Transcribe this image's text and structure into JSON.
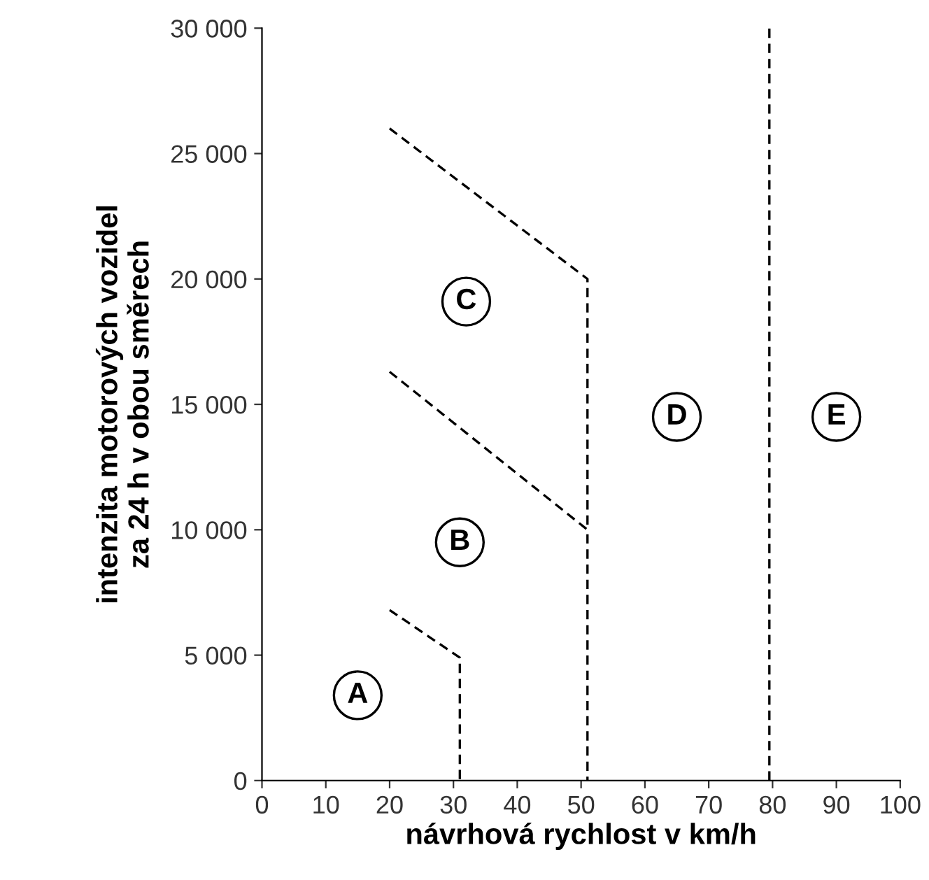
{
  "chart_data": {
    "type": "line",
    "xlabel": "návrhová rychlost v km/h",
    "ylabel": "intenzita motorových vozidel\nza 24 h v obou směrech",
    "series": [
      {
        "color": "#000000",
        "x": [
          20,
          31,
          31
        ],
        "values": [
          6800,
          4900,
          0
        ]
      },
      {
        "color": "#000000",
        "x": [
          20,
          51,
          51
        ],
        "values": [
          16300,
          10000,
          0
        ]
      },
      {
        "color": "#000000",
        "x": [
          20,
          51,
          51
        ],
        "values": [
          26000,
          20000,
          10000
        ]
      },
      {
        "color": "#000000",
        "x": [
          79.5,
          79.5
        ],
        "values": [
          0,
          30000
        ]
      }
    ],
    "line_style": "dashed",
    "marker": "none",
    "grid": false,
    "legend": false,
    "xlim": [
      0,
      100
    ],
    "xticks": [
      0,
      10,
      20,
      30,
      40,
      50,
      60,
      70,
      80,
      90,
      100
    ],
    "ylim": [
      0,
      30000
    ],
    "yticks": [
      {
        "value": 0,
        "label": "0"
      },
      {
        "value": 5000,
        "label": "5 000"
      },
      {
        "value": 10000,
        "label": "10 000"
      },
      {
        "value": 15000,
        "label": "15 000"
      },
      {
        "value": 20000,
        "label": "20 000"
      },
      {
        "value": 25000,
        "label": "25 000"
      },
      {
        "value": 30000,
        "label": "30 000"
      }
    ],
    "annotations": [
      {
        "text": "A",
        "x": 15,
        "y": 3400
      },
      {
        "text": "B",
        "x": 31,
        "y": 9500
      },
      {
        "text": "C",
        "x": 32,
        "y": 19100
      },
      {
        "text": "D",
        "x": 65,
        "y": 14500
      },
      {
        "text": "E",
        "x": 90,
        "y": 14500
      }
    ]
  }
}
